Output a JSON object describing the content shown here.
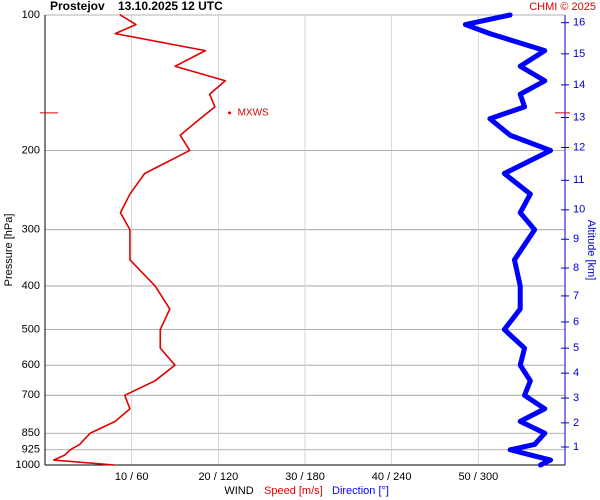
{
  "chart_data": {
    "type": "wind-profile",
    "title": "Prostejov",
    "subtitle": "13.10.2025 12 UTC",
    "credit": "CHMI © 2025",
    "ylabel": "Pressure [hPa]",
    "y2label": "Altitude [km]",
    "xlabel": "WIND",
    "log_y": true,
    "grid": true,
    "ylim": [
      1000,
      100
    ],
    "yticks": [
      100,
      200,
      300,
      400,
      500,
      600,
      700,
      850,
      925,
      1000
    ],
    "xlim": [
      0,
      60
    ],
    "x2lim": [
      0,
      360
    ],
    "xticks": [
      {
        "value": 10,
        "label": "10 / 60"
      },
      {
        "value": 20,
        "label": "20 / 120"
      },
      {
        "value": 30,
        "label": "30 / 180"
      },
      {
        "value": 40,
        "label": "40 / 240"
      },
      {
        "value": 50,
        "label": "50 / 300"
      }
    ],
    "altitude_axis": {
      "ticks": [
        1,
        2,
        3,
        4,
        5,
        6,
        7,
        8,
        9,
        10,
        11,
        12,
        13,
        14,
        15,
        16
      ],
      "pressures": [
        912,
        806,
        710,
        625,
        550,
        481,
        421,
        365,
        315,
        271,
        233,
        197,
        169,
        143,
        122,
        104
      ]
    },
    "pressure": [
      1000,
      975,
      950,
      925,
      900,
      850,
      800,
      750,
      700,
      650,
      600,
      550,
      500,
      450,
      400,
      350,
      300,
      275,
      250,
      225,
      200,
      185,
      170,
      160,
      150,
      140,
      130,
      120,
      110,
      105,
      100
    ],
    "series": [
      {
        "name": "Speed [m/s]",
        "color": "#e00000",
        "axis": "x",
        "values": [
          8,
          1,
          2.3,
          2.9,
          4.0,
          5.2,
          8.1,
          9.8,
          9.2,
          12.7,
          15.0,
          13.3,
          13.3,
          14.4,
          12.7,
          9.8,
          9.8,
          8.7,
          9.8,
          11.5,
          16.7,
          15.6,
          17.9,
          19.6,
          19.0,
          20.8,
          15.0,
          18.5,
          8.1,
          10.5,
          8.7
        ]
      },
      {
        "name": "Direction [°]",
        "color": "#0000ff",
        "axis": "x2",
        "values": [
          343,
          350,
          336,
          322,
          339,
          346,
          329,
          346,
          332,
          336,
          329,
          332,
          318,
          329,
          329,
          325,
          339,
          329,
          336,
          318,
          350,
          322,
          308,
          332,
          329,
          346,
          329,
          346,
          308,
          291,
          322
        ]
      }
    ],
    "annotation": {
      "text": "MXWS",
      "pressure": 165,
      "speed": 21.3
    }
  }
}
